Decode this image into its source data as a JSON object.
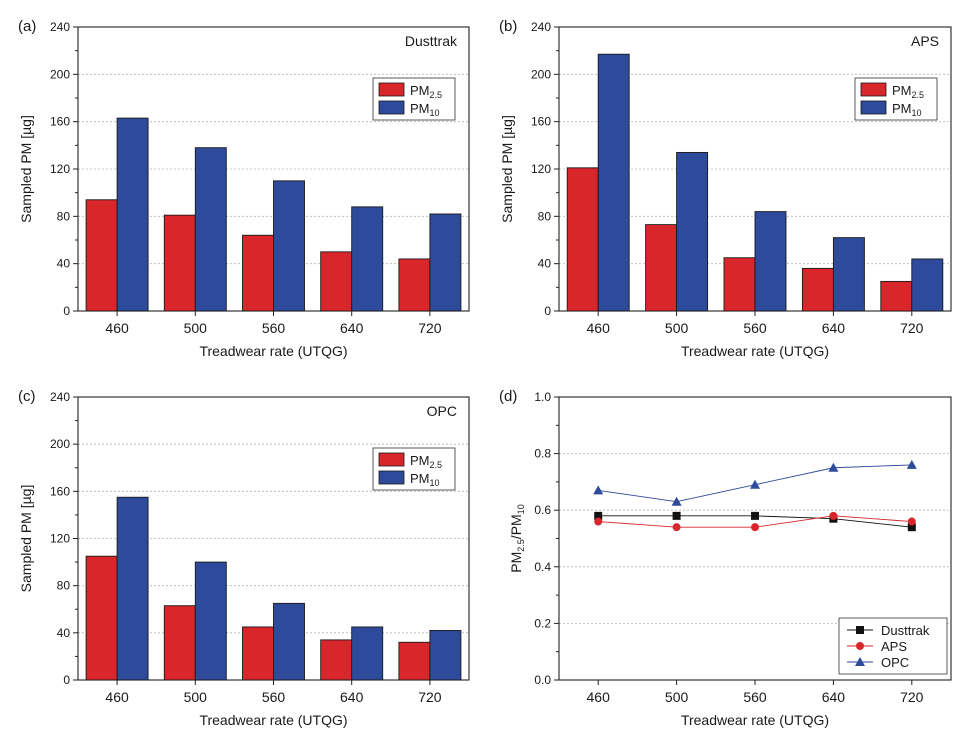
{
  "chart_data": [
    {
      "type": "bar",
      "panel_label": "(a)",
      "instrument": "Dusttrak",
      "categories": [
        "460",
        "500",
        "560",
        "640",
        "720"
      ],
      "series": [
        {
          "name": "PM",
          "sub": "2.5",
          "color": "#d8262b",
          "values": [
            94,
            81,
            64,
            50,
            44
          ]
        },
        {
          "name": "PM",
          "sub": "10",
          "color": "#2e4a9b",
          "values": [
            163,
            138,
            110,
            88,
            82
          ]
        }
      ],
      "xlabel": "Treadwear rate (UTQG)",
      "ylabel": "Sampled PM [µg]",
      "ylim": [
        0,
        240
      ],
      "yticks": [
        "0",
        "40",
        "80",
        "120",
        "160",
        "200",
        "240"
      ],
      "grid": true,
      "legend_position": "top-right"
    },
    {
      "type": "bar",
      "panel_label": "(b)",
      "instrument": "APS",
      "categories": [
        "460",
        "500",
        "560",
        "640",
        "720"
      ],
      "series": [
        {
          "name": "PM",
          "sub": "2.5",
          "color": "#d8262b",
          "values": [
            121,
            73,
            45,
            36,
            25
          ]
        },
        {
          "name": "PM",
          "sub": "10",
          "color": "#2e4a9b",
          "values": [
            217,
            134,
            84,
            62,
            44
          ]
        }
      ],
      "xlabel": "Treadwear rate (UTQG)",
      "ylabel": "Sampled PM [µg]",
      "ylim": [
        0,
        240
      ],
      "yticks": [
        "0",
        "40",
        "80",
        "120",
        "160",
        "200",
        "240"
      ],
      "grid": true,
      "legend_position": "top-right"
    },
    {
      "type": "bar",
      "panel_label": "(c)",
      "instrument": "OPC",
      "categories": [
        "460",
        "500",
        "560",
        "640",
        "720"
      ],
      "series": [
        {
          "name": "PM",
          "sub": "2.5",
          "color": "#d8262b",
          "values": [
            105,
            63,
            45,
            34,
            32
          ]
        },
        {
          "name": "PM",
          "sub": "10",
          "color": "#2e4a9b",
          "values": [
            155,
            100,
            65,
            45,
            42
          ]
        }
      ],
      "xlabel": "Treadwear rate (UTQG)",
      "ylabel": "Sampled PM [µg]",
      "ylim": [
        0,
        240
      ],
      "yticks": [
        "0",
        "40",
        "80",
        "120",
        "160",
        "200",
        "240"
      ],
      "grid": true,
      "legend_position": "top-right"
    },
    {
      "type": "line",
      "panel_label": "(d)",
      "categories": [
        "460",
        "500",
        "560",
        "640",
        "720"
      ],
      "series": [
        {
          "name": "Dusttrak",
          "color": "#111111",
          "marker": "square",
          "values": [
            0.58,
            0.58,
            0.58,
            0.57,
            0.54
          ]
        },
        {
          "name": "APS",
          "color": "#d8262b",
          "marker": "circle",
          "values": [
            0.56,
            0.54,
            0.54,
            0.58,
            0.56
          ]
        },
        {
          "name": "OPC",
          "color": "#2e4a9b",
          "marker": "triangle",
          "values": [
            0.67,
            0.63,
            0.69,
            0.75,
            0.76
          ]
        }
      ],
      "xlabel": "Treadwear rate (UTQG)",
      "ylabel_main": "PM",
      "ylabel_sub1": "2.5",
      "ylabel_sep": "/PM",
      "ylabel_sub2": "10",
      "ylim": [
        0,
        1.0
      ],
      "yticks": [
        "0.0",
        "0.2",
        "0.4",
        "0.6",
        "0.8",
        "1.0"
      ],
      "grid": true,
      "legend_position": "bottom-right"
    }
  ]
}
